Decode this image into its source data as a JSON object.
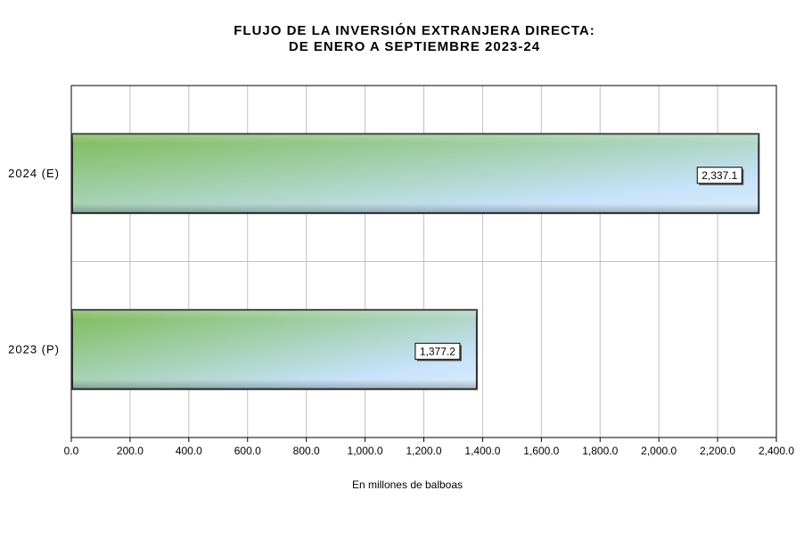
{
  "chart_data": {
    "type": "bar",
    "orientation": "horizontal",
    "title_line1": "FLUJO DE LA INVERSIÓN EXTRANJERA DIRECTA:",
    "title_line2": "DE ENERO A SEPTIEMBRE 2023-24",
    "xlabel": "En millones de balboas",
    "ylabel": "",
    "categories": [
      "2024 (E)",
      "2023 (P)"
    ],
    "values": [
      2337.1,
      1377.2
    ],
    "data_labels": [
      "2,337.1",
      "1,377.2"
    ],
    "xlim": [
      0,
      2400
    ],
    "x_ticks": [
      0,
      200,
      400,
      600,
      800,
      1000,
      1200,
      1400,
      1600,
      1800,
      2000,
      2200,
      2400
    ],
    "x_tick_labels": [
      "0.0",
      "200.0",
      "400.0",
      "600.0",
      "800.0",
      "1,000.0",
      "1,200.0",
      "1,400.0",
      "1,600.0",
      "1,800.0",
      "2,000.0",
      "2,200.0",
      "2,400.0"
    ],
    "grid": true,
    "colors": {
      "gradient_start": "#7dbb58",
      "gradient_end": "#c6e2fa",
      "bar_border": "#2b2b2b"
    }
  }
}
